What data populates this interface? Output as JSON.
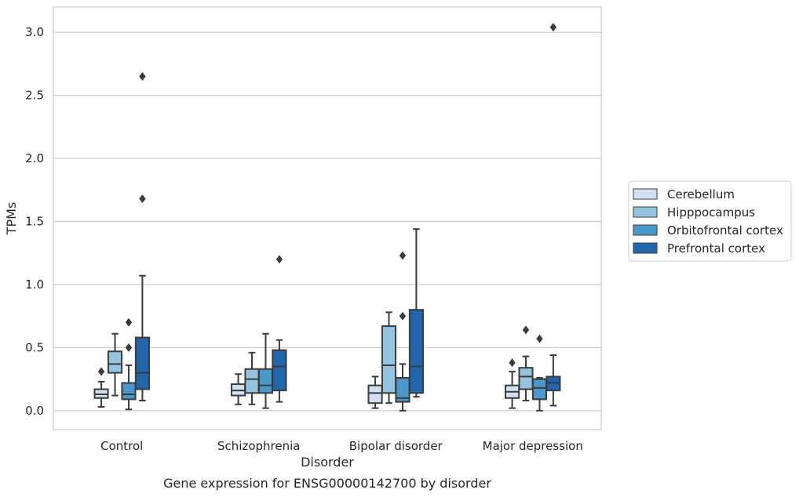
{
  "chart_data": {
    "type": "box",
    "caption": "Gene expression for ENSG00000142700 by disorder",
    "xlabel": "Disorder",
    "ylabel": "TPMs",
    "ylim": [
      -0.15,
      3.2
    ],
    "yticks": [
      0.0,
      0.5,
      1.0,
      1.5,
      2.0,
      2.5,
      3.0
    ],
    "ytick_labels": [
      "0.0",
      "0.5",
      "1.0",
      "1.5",
      "2.0",
      "2.5",
      "3.0"
    ],
    "grid": "horizontal",
    "legend_position": "right",
    "categories": [
      "Control",
      "Schizophrenia",
      "Bipolar disorder",
      "Major depression"
    ],
    "series": [
      {
        "name": "Cerebellum",
        "color": "#d0e1f2",
        "boxes": [
          {
            "whisker_low": 0.03,
            "q1": 0.1,
            "median": 0.13,
            "q3": 0.17,
            "whisker_high": 0.23,
            "outliers": [
              0.31
            ]
          },
          {
            "whisker_low": 0.05,
            "q1": 0.12,
            "median": 0.16,
            "q3": 0.21,
            "whisker_high": 0.29,
            "outliers": []
          },
          {
            "whisker_low": 0.02,
            "q1": 0.06,
            "median": 0.14,
            "q3": 0.2,
            "whisker_high": 0.27,
            "outliers": []
          },
          {
            "whisker_low": 0.02,
            "q1": 0.1,
            "median": 0.15,
            "q3": 0.2,
            "whisker_high": 0.31,
            "outliers": [
              0.38
            ]
          }
        ]
      },
      {
        "name": "Hipppocampus",
        "color": "#94c4df",
        "boxes": [
          {
            "whisker_low": 0.12,
            "q1": 0.3,
            "median": 0.37,
            "q3": 0.47,
            "whisker_high": 0.61,
            "outliers": []
          },
          {
            "whisker_low": 0.05,
            "q1": 0.14,
            "median": 0.25,
            "q3": 0.33,
            "whisker_high": 0.46,
            "outliers": []
          },
          {
            "whisker_low": 0.06,
            "q1": 0.14,
            "median": 0.36,
            "q3": 0.67,
            "whisker_high": 0.78,
            "outliers": []
          },
          {
            "whisker_low": 0.08,
            "q1": 0.17,
            "median": 0.27,
            "q3": 0.34,
            "whisker_high": 0.43,
            "outliers": [
              0.64
            ]
          }
        ]
      },
      {
        "name": "Orbitofrontal cortex",
        "color": "#4a98c9",
        "boxes": [
          {
            "whisker_low": 0.01,
            "q1": 0.09,
            "median": 0.13,
            "q3": 0.22,
            "whisker_high": 0.36,
            "outliers": [
              0.5,
              0.7
            ]
          },
          {
            "whisker_low": 0.02,
            "q1": 0.14,
            "median": 0.2,
            "q3": 0.33,
            "whisker_high": 0.61,
            "outliers": []
          },
          {
            "whisker_low": 0.0,
            "q1": 0.07,
            "median": 0.1,
            "q3": 0.26,
            "whisker_high": 0.37,
            "outliers": [
              0.75,
              1.23
            ]
          },
          {
            "whisker_low": 0.0,
            "q1": 0.09,
            "median": 0.18,
            "q3": 0.25,
            "whisker_high": 0.26,
            "outliers": [
              0.57
            ]
          }
        ]
      },
      {
        "name": "Prefrontal cortex",
        "color": "#2166ac",
        "boxes": [
          {
            "whisker_low": 0.08,
            "q1": 0.17,
            "median": 0.3,
            "q3": 0.58,
            "whisker_high": 1.07,
            "outliers": [
              1.68,
              2.65
            ]
          },
          {
            "whisker_low": 0.07,
            "q1": 0.16,
            "median": 0.35,
            "q3": 0.48,
            "whisker_high": 0.56,
            "outliers": [
              1.2
            ]
          },
          {
            "whisker_low": 0.11,
            "q1": 0.14,
            "median": 0.35,
            "q3": 0.8,
            "whisker_high": 1.44,
            "outliers": []
          },
          {
            "whisker_low": 0.04,
            "q1": 0.16,
            "median": 0.22,
            "q3": 0.27,
            "whisker_high": 0.44,
            "outliers": [
              3.04
            ]
          }
        ]
      }
    ]
  }
}
